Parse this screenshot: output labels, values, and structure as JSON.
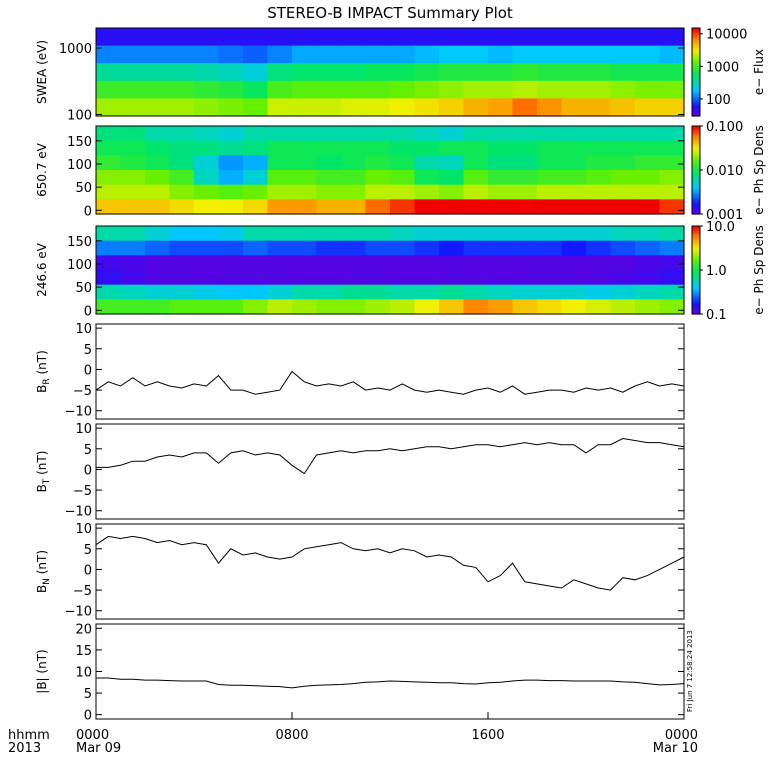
{
  "chart_data": {
    "type": "heatmap",
    "title": "STEREO-B IMPACT Summary Plot",
    "time_axis": {
      "row_label_1": "hhmm",
      "row_label_2": "2013",
      "range_hours": [
        0,
        24
      ],
      "ticks": [
        {
          "hour": 0,
          "line1": "0000",
          "line2": "Mar 09"
        },
        {
          "hour": 8,
          "line1": "0800",
          "line2": ""
        },
        {
          "hour": 16,
          "line1": "1600",
          "line2": ""
        },
        {
          "hour": 24,
          "line1": "0000",
          "line2": "Mar 10"
        }
      ]
    },
    "timestamp_note": "Fri Jun 7 12:58:24 2013",
    "spectrograms": [
      {
        "id": "swea",
        "ylabel": "SWEA (eV)",
        "y_scale": "log",
        "ylim": [
          95,
          2000
        ],
        "yticks": [
          {
            "v": 100,
            "t": "100"
          },
          {
            "v": 1000,
            "t": "1000"
          }
        ],
        "colorbar": {
          "label": "e− Flux",
          "scale": "log",
          "range": [
            30,
            15000
          ],
          "ticks": [
            {
              "v": 100,
              "t": "100"
            },
            {
              "v": 1000,
              "t": "1000"
            },
            {
              "v": 10000,
              "t": "10000"
            }
          ]
        },
        "colormap": "rainbow",
        "grid": [
          [
            1.72,
            1.72,
            1.72,
            1.72,
            1.72,
            1.72,
            1.72,
            1.72,
            1.72,
            1.72,
            1.72,
            1.72,
            1.72,
            1.72,
            1.72,
            1.72,
            1.72,
            1.72,
            1.72,
            1.72,
            1.72,
            1.72,
            1.72,
            1.72
          ],
          [
            2.1,
            2.1,
            2.1,
            2.1,
            2.1,
            2.05,
            2.0,
            2.1,
            2.2,
            2.2,
            2.2,
            2.2,
            2.2,
            2.25,
            2.3,
            2.3,
            2.25,
            2.3,
            2.3,
            2.3,
            2.3,
            2.3,
            2.3,
            2.25
          ],
          [
            2.6,
            2.6,
            2.6,
            2.6,
            2.55,
            2.5,
            2.4,
            2.7,
            2.75,
            2.75,
            2.75,
            2.8,
            2.8,
            2.85,
            2.9,
            2.9,
            2.9,
            2.95,
            2.9,
            2.9,
            2.9,
            2.85,
            2.85,
            2.85
          ],
          [
            3.0,
            3.0,
            3.0,
            3.0,
            2.95,
            2.9,
            2.8,
            3.05,
            3.1,
            3.1,
            3.1,
            3.1,
            3.15,
            3.2,
            3.25,
            3.3,
            3.3,
            3.35,
            3.3,
            3.3,
            3.3,
            3.25,
            3.2,
            3.2
          ],
          [
            3.3,
            3.3,
            3.3,
            3.3,
            3.25,
            3.2,
            3.15,
            3.4,
            3.4,
            3.4,
            3.45,
            3.45,
            3.5,
            3.55,
            3.6,
            3.7,
            3.75,
            3.9,
            3.8,
            3.7,
            3.7,
            3.65,
            3.6,
            3.6
          ]
        ]
      },
      {
        "id": "pa650",
        "ylabel": "650.7 eV",
        "y_scale": "linear",
        "ylim": [
          -8,
          182
        ],
        "yticks": [
          {
            "v": 0,
            "t": "0"
          },
          {
            "v": 50,
            "t": "50"
          },
          {
            "v": 100,
            "t": "100"
          },
          {
            "v": 150,
            "t": "150"
          }
        ],
        "colorbar": {
          "label": "e− Ph Sp Dens",
          "scale": "log",
          "range": [
            0.001,
            0.1
          ],
          "ticks": [
            {
              "v": 0.001,
              "t": "0.001"
            },
            {
              "v": 0.01,
              "t": "0.010"
            },
            {
              "v": 0.1,
              "t": "0.100"
            }
          ]
        },
        "colormap": "rainbow",
        "grid": [
          [
            -2.1,
            -2.1,
            -2.2,
            -2.2,
            -2.25,
            -2.3,
            -2.2,
            -2.2,
            -2.2,
            -2.2,
            -2.2,
            -2.2,
            -2.2,
            -2.25,
            -2.3,
            -2.2,
            -2.2,
            -2.2,
            -2.2,
            -2.2,
            -2.2,
            -2.2,
            -2.2,
            -2.2
          ],
          [
            -2.0,
            -2.0,
            -2.05,
            -2.1,
            -2.1,
            -2.15,
            -2.1,
            -2.0,
            -2.0,
            -2.0,
            -2.0,
            -2.0,
            -2.05,
            -2.05,
            -2.0,
            -2.0,
            -2.05,
            -2.05,
            -2.0,
            -2.0,
            -2.0,
            -2.0,
            -2.0,
            -2.0
          ],
          [
            -1.9,
            -1.95,
            -2.0,
            -2.1,
            -2.3,
            -2.5,
            -2.45,
            -2.0,
            -2.0,
            -2.05,
            -2.0,
            -1.95,
            -2.0,
            -2.2,
            -2.25,
            -2.0,
            -2.1,
            -2.1,
            -2.0,
            -2.0,
            -1.95,
            -1.95,
            -1.9,
            -1.9
          ],
          [
            -1.7,
            -1.7,
            -1.75,
            -1.85,
            -2.25,
            -2.45,
            -2.3,
            -1.8,
            -1.8,
            -1.85,
            -1.85,
            -1.75,
            -1.8,
            -2.0,
            -2.05,
            -1.8,
            -1.9,
            -1.9,
            -1.85,
            -1.85,
            -1.8,
            -1.75,
            -1.75,
            -1.7
          ],
          [
            -1.6,
            -1.6,
            -1.6,
            -1.7,
            -1.75,
            -1.8,
            -1.75,
            -1.65,
            -1.65,
            -1.7,
            -1.7,
            -1.6,
            -1.6,
            -1.65,
            -1.7,
            -1.6,
            -1.65,
            -1.65,
            -1.6,
            -1.6,
            -1.6,
            -1.6,
            -1.6,
            -1.6
          ],
          [
            -1.4,
            -1.4,
            -1.4,
            -1.45,
            -1.5,
            -1.5,
            -1.45,
            -1.3,
            -1.3,
            -1.35,
            -1.35,
            -1.2,
            -1.1,
            -1.0,
            -0.9,
            -0.8,
            -0.6,
            -0.5,
            -0.55,
            -0.55,
            -0.7,
            -0.9,
            -1.0,
            -1.1
          ]
        ]
      },
      {
        "id": "pa246",
        "ylabel": "246.6 eV",
        "y_scale": "linear",
        "ylim": [
          -8,
          182
        ],
        "yticks": [
          {
            "v": 0,
            "t": "0"
          },
          {
            "v": 50,
            "t": "50"
          },
          {
            "v": 100,
            "t": "100"
          },
          {
            "v": 150,
            "t": "150"
          }
        ],
        "colorbar": {
          "label": "e− Ph Sp Dens",
          "scale": "log",
          "range": [
            0.1,
            10
          ],
          "ticks": [
            {
              "v": 0.1,
              "t": "0.1"
            },
            {
              "v": 1,
              "t": "1.0"
            },
            {
              "v": 10,
              "t": "10.0"
            }
          ]
        },
        "colormap": "rainbow",
        "grid": [
          [
            -0.2,
            -0.2,
            -0.3,
            -0.4,
            -0.4,
            -0.35,
            -0.2,
            -0.2,
            -0.2,
            -0.2,
            -0.2,
            -0.2,
            -0.25,
            -0.3,
            -0.3,
            -0.3,
            -0.3,
            -0.3,
            -0.3,
            -0.3,
            -0.3,
            -0.25,
            -0.25,
            -0.2
          ],
          [
            -0.55,
            -0.55,
            -0.6,
            -0.65,
            -0.65,
            -0.65,
            -0.6,
            -0.65,
            -0.65,
            -0.7,
            -0.7,
            -0.65,
            -0.65,
            -0.7,
            -0.75,
            -0.7,
            -0.7,
            -0.7,
            -0.7,
            -0.75,
            -0.7,
            -0.65,
            -0.6,
            -0.55
          ],
          [
            -0.9,
            -0.92,
            -0.95,
            -0.95,
            -0.95,
            -0.95,
            -0.95,
            -0.95,
            -0.95,
            -0.95,
            -0.95,
            -0.95,
            -0.95,
            -0.95,
            -0.95,
            -0.95,
            -0.95,
            -0.95,
            -0.95,
            -0.95,
            -0.95,
            -0.95,
            -0.92,
            -0.9
          ],
          [
            -0.85,
            -0.9,
            -0.95,
            -0.95,
            -0.95,
            -0.95,
            -0.95,
            -0.95,
            -0.95,
            -0.95,
            -0.95,
            -0.95,
            -0.95,
            -0.95,
            -0.95,
            -0.95,
            -0.95,
            -0.95,
            -0.95,
            -0.95,
            -0.95,
            -0.92,
            -0.9,
            -0.85
          ],
          [
            -0.2,
            -0.25,
            -0.3,
            -0.3,
            -0.35,
            -0.4,
            -0.4,
            -0.3,
            -0.2,
            -0.2,
            -0.15,
            -0.15,
            -0.2,
            -0.2,
            -0.15,
            -0.2,
            -0.25,
            -0.3,
            -0.3,
            -0.3,
            -0.35,
            -0.3,
            -0.25,
            -0.2
          ],
          [
            0.15,
            0.15,
            0.15,
            0.2,
            0.2,
            0.2,
            0.3,
            0.4,
            0.35,
            0.3,
            0.3,
            0.35,
            0.4,
            0.5,
            0.6,
            0.75,
            0.7,
            0.6,
            0.55,
            0.5,
            0.45,
            0.4,
            0.35,
            0.3
          ]
        ]
      }
    ],
    "line_panels": [
      {
        "id": "br",
        "label_main": "B",
        "label_sub": "R",
        "label_unit": " (nT)",
        "ylim": [
          -12,
          11
        ],
        "yticks": [
          {
            "v": -10,
            "t": "−10"
          },
          {
            "v": -5,
            "t": "−5"
          },
          {
            "v": 0,
            "t": "0"
          },
          {
            "v": 5,
            "t": "5"
          },
          {
            "v": 10,
            "t": "10"
          }
        ],
        "x": [
          0,
          0.5,
          1,
          1.5,
          2,
          2.5,
          3,
          3.5,
          4,
          4.5,
          5,
          5.5,
          6,
          6.5,
          7,
          7.5,
          8,
          8.5,
          9,
          9.5,
          10,
          10.5,
          11,
          11.5,
          12,
          12.5,
          13,
          13.5,
          14,
          14.5,
          15,
          15.5,
          16,
          16.5,
          17,
          17.5,
          18,
          18.5,
          19,
          19.5,
          20,
          20.5,
          21,
          21.5,
          22,
          22.5,
          23,
          23.5,
          24
        ],
        "y": [
          -5,
          -3,
          -4,
          -2,
          -4,
          -3,
          -4,
          -4.5,
          -3.5,
          -4,
          -1.5,
          -5,
          -5,
          -6,
          -5.5,
          -5,
          -0.5,
          -3,
          -4,
          -3.5,
          -4,
          -3,
          -5,
          -4.5,
          -5,
          -3.5,
          -5,
          -5.5,
          -5,
          -5.5,
          -6,
          -5,
          -4.5,
          -5.5,
          -4,
          -6,
          -5.5,
          -5,
          -5,
          -5.5,
          -4.5,
          -5,
          -4.5,
          -5.5,
          -4,
          -3,
          -4,
          -3.5,
          -4
        ]
      },
      {
        "id": "bt",
        "label_main": "B",
        "label_sub": "T",
        "label_unit": " (nT)",
        "ylim": [
          -12,
          11
        ],
        "yticks": [
          {
            "v": -10,
            "t": "−10"
          },
          {
            "v": -5,
            "t": "−5"
          },
          {
            "v": 0,
            "t": "0"
          },
          {
            "v": 5,
            "t": "5"
          },
          {
            "v": 10,
            "t": "10"
          }
        ],
        "x": [
          0,
          0.5,
          1,
          1.5,
          2,
          2.5,
          3,
          3.5,
          4,
          4.5,
          5,
          5.5,
          6,
          6.5,
          7,
          7.5,
          8,
          8.5,
          9,
          9.5,
          10,
          10.5,
          11,
          11.5,
          12,
          12.5,
          13,
          13.5,
          14,
          14.5,
          15,
          15.5,
          16,
          16.5,
          17,
          17.5,
          18,
          18.5,
          19,
          19.5,
          20,
          20.5,
          21,
          21.5,
          22,
          22.5,
          23,
          23.5,
          24
        ],
        "y": [
          0.5,
          0.5,
          1,
          2,
          2,
          3,
          3.5,
          3,
          4,
          4,
          1.5,
          4,
          4.5,
          3.5,
          4,
          3.5,
          1,
          -1,
          3.5,
          4,
          4.5,
          4,
          4.5,
          4.5,
          5,
          4.5,
          5,
          5.5,
          5.5,
          5,
          5.5,
          6,
          6,
          5.5,
          6,
          6.5,
          6,
          6.5,
          6,
          6,
          4,
          6,
          6,
          7.5,
          7,
          6.5,
          6.5,
          6,
          5.5
        ]
      },
      {
        "id": "bn",
        "label_main": "B",
        "label_sub": "N",
        "label_unit": " (nT)",
        "ylim": [
          -12,
          11
        ],
        "yticks": [
          {
            "v": -10,
            "t": "−10"
          },
          {
            "v": -5,
            "t": "−5"
          },
          {
            "v": 0,
            "t": "0"
          },
          {
            "v": 5,
            "t": "5"
          },
          {
            "v": 10,
            "t": "10"
          }
        ],
        "x": [
          0,
          0.5,
          1,
          1.5,
          2,
          2.5,
          3,
          3.5,
          4,
          4.5,
          5,
          5.5,
          6,
          6.5,
          7,
          7.5,
          8,
          8.5,
          9,
          9.5,
          10,
          10.5,
          11,
          11.5,
          12,
          12.5,
          13,
          13.5,
          14,
          14.5,
          15,
          15.5,
          16,
          16.5,
          17,
          17.5,
          18,
          18.5,
          19,
          19.5,
          20,
          20.5,
          21,
          21.5,
          22,
          22.5,
          23,
          23.5,
          24
        ],
        "y": [
          6,
          8,
          7.5,
          8,
          7.5,
          6.5,
          7,
          6,
          6.5,
          6,
          1.5,
          5,
          3.5,
          4,
          3,
          2.5,
          3,
          5,
          5.5,
          6,
          6.5,
          5,
          4.5,
          5,
          4,
          5,
          4.5,
          3,
          3.5,
          3,
          1,
          0.5,
          -3,
          -1.5,
          1.5,
          -3,
          -3.5,
          -4,
          -4.5,
          -2.5,
          -3.5,
          -4.5,
          -5,
          -2,
          -2.5,
          -1.5,
          0,
          1.5,
          3
        ]
      },
      {
        "id": "bmag",
        "label_main": "|B|",
        "label_sub": "",
        "label_unit": " (nT)",
        "ylim": [
          -1,
          21
        ],
        "yticks": [
          {
            "v": 0,
            "t": "0"
          },
          {
            "v": 5,
            "t": "5"
          },
          {
            "v": 10,
            "t": "10"
          },
          {
            "v": 15,
            "t": "15"
          },
          {
            "v": 20,
            "t": "20"
          }
        ],
        "x": [
          0,
          0.5,
          1,
          1.5,
          2,
          2.5,
          3,
          3.5,
          4,
          4.5,
          5,
          5.5,
          6,
          6.5,
          7,
          7.5,
          8,
          8.5,
          9,
          9.5,
          10,
          10.5,
          11,
          11.5,
          12,
          12.5,
          13,
          13.5,
          14,
          14.5,
          15,
          15.5,
          16,
          16.5,
          17,
          17.5,
          18,
          18.5,
          19,
          19.5,
          20,
          20.5,
          21,
          21.5,
          22,
          22.5,
          23,
          23.5,
          24
        ],
        "y": [
          8.5,
          8.5,
          8.2,
          8.2,
          8,
          8,
          7.9,
          7.8,
          7.8,
          7.8,
          7,
          6.8,
          6.8,
          6.7,
          6.6,
          6.5,
          6.2,
          6.6,
          6.8,
          6.9,
          7,
          7.2,
          7.5,
          7.6,
          7.8,
          7.7,
          7.6,
          7.5,
          7.4,
          7.4,
          7.2,
          7.1,
          7.4,
          7.5,
          7.8,
          8,
          8,
          7.9,
          7.9,
          7.8,
          7.8,
          7.8,
          7.8,
          7.6,
          7.5,
          7.2,
          6.9,
          7,
          7.2
        ]
      }
    ]
  }
}
